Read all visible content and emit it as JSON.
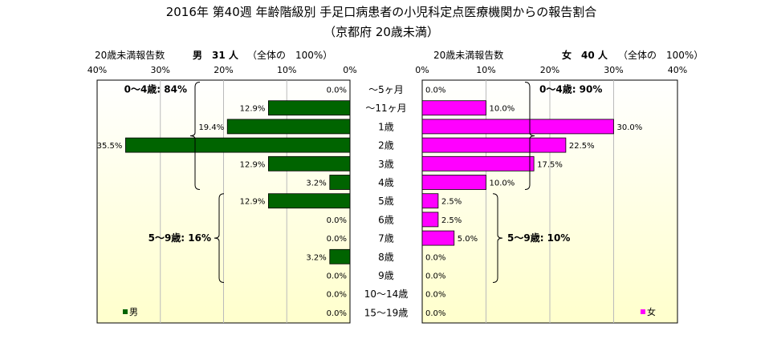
{
  "chart_data": {
    "type": "bar",
    "orientation": "horizontal-butterfly",
    "title": "2016年 第40週 年齢階級別 手足口病患者の小児科定点医療機関からの報告割合",
    "subtitle": "（京都府 20歳未満）",
    "categories": [
      "～5ヶ月",
      "～11ヶ月",
      "1歳",
      "2歳",
      "3歳",
      "4歳",
      "5歳",
      "6歳",
      "7歳",
      "8歳",
      "9歳",
      "10～14歳",
      "15～19歳"
    ],
    "xlim": [
      0,
      40
    ],
    "ticks": [
      "40%",
      "30%",
      "20%",
      "10%",
      "0%"
    ],
    "ticks_right": [
      "0%",
      "10%",
      "20%",
      "30%",
      "40%"
    ],
    "grid": true,
    "series": [
      {
        "name": "男",
        "side": "left",
        "color": "#006400",
        "header_left": "20歳未満報告数",
        "header_label": "男　31 人",
        "header_note": "（全体の　100%）",
        "values": [
          0.0,
          12.9,
          19.4,
          35.5,
          12.9,
          3.2,
          12.9,
          0.0,
          0.0,
          3.2,
          0.0,
          0.0,
          0.0
        ],
        "labels": [
          "0.0%",
          "12.9%",
          "19.4%",
          "35.5%",
          "12.9%",
          "3.2%",
          "12.9%",
          "0.0%",
          "0.0%",
          "3.2%",
          "0.0%",
          "0.0%",
          "0.0%"
        ],
        "groups": [
          {
            "label": "0～4歳: 84%",
            "from": 0,
            "to": 5
          },
          {
            "label": "5～9歳: 16%",
            "from": 6,
            "to": 10
          }
        ]
      },
      {
        "name": "女",
        "side": "right",
        "color": "#ff00ff",
        "header_left": "20歳未満報告数",
        "header_label": "女　40 人",
        "header_note": "（全体の　100%）",
        "values": [
          0.0,
          10.0,
          30.0,
          22.5,
          17.5,
          10.0,
          2.5,
          2.5,
          5.0,
          0.0,
          0.0,
          0.0,
          0.0
        ],
        "labels": [
          "0.0%",
          "10.0%",
          "30.0%",
          "22.5%",
          "17.5%",
          "10.0%",
          "2.5%",
          "2.5%",
          "5.0%",
          "0.0%",
          "0.0%",
          "0.0%",
          "0.0%"
        ],
        "groups": [
          {
            "label": "0～4歳: 90%",
            "from": 0,
            "to": 5
          },
          {
            "label": "5～9歳: 10%",
            "from": 6,
            "to": 10
          }
        ]
      }
    ],
    "plot_background": {
      "top": "#ffffff",
      "bottom": "#ffffcc"
    }
  }
}
